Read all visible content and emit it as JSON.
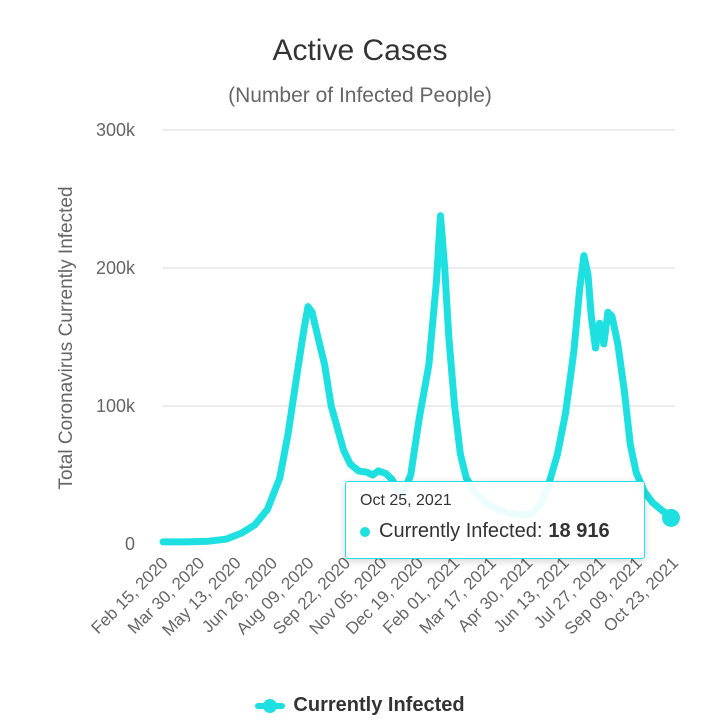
{
  "chart_data": {
    "type": "line",
    "title": "Active Cases",
    "subtitle": "(Number of Infected People)",
    "ylabel": "Total Coronavirus Currently Infected",
    "xlabel": "",
    "ylim": [
      0,
      300000
    ],
    "yticks": [
      {
        "value": 0,
        "label": "0"
      },
      {
        "value": 100000,
        "label": "100k"
      },
      {
        "value": 200000,
        "label": "200k"
      },
      {
        "value": 300000,
        "label": "300k"
      }
    ],
    "x_tick_labels": [
      "Feb 15, 2020",
      "Mar 30, 2020",
      "May 13, 2020",
      "Jun 26, 2020",
      "Aug 09, 2020",
      "Sep 22, 2020",
      "Nov 05, 2020",
      "Dec 19, 2020",
      "Feb 01, 2021",
      "Mar 17, 2021",
      "Apr 30, 2021",
      "Jun 13, 2021",
      "Jul 27, 2021",
      "Sep 09, 2021",
      "Oct 23, 2021"
    ],
    "grid": true,
    "legend_position": "bottom",
    "series": [
      {
        "name": "Currently Infected",
        "color": "#1ee0e0",
        "points": [
          [
            "Feb 15, 2020",
            1500
          ],
          [
            "Mar 15, 2020",
            1500
          ],
          [
            "Apr 10, 2020",
            2000
          ],
          [
            "May 01, 2020",
            3500
          ],
          [
            "May 20, 2020",
            8000
          ],
          [
            "Jun 05, 2020",
            14000
          ],
          [
            "Jun 20, 2020",
            25000
          ],
          [
            "Jul 05, 2020",
            48000
          ],
          [
            "Jul 15, 2020",
            80000
          ],
          [
            "Jul 25, 2020",
            120000
          ],
          [
            "Aug 03, 2020",
            155000
          ],
          [
            "Aug 08, 2020",
            172000
          ],
          [
            "Aug 13, 2020",
            168000
          ],
          [
            "Aug 20, 2020",
            150000
          ],
          [
            "Aug 28, 2020",
            130000
          ],
          [
            "Sep 05, 2020",
            100000
          ],
          [
            "Sep 12, 2020",
            85000
          ],
          [
            "Sep 20, 2020",
            68000
          ],
          [
            "Sep 28, 2020",
            58000
          ],
          [
            "Oct 08, 2020",
            53000
          ],
          [
            "Oct 18, 2020",
            52000
          ],
          [
            "Oct 25, 2020",
            50000
          ],
          [
            "Nov 01, 2020",
            53000
          ],
          [
            "Nov 10, 2020",
            51000
          ],
          [
            "Nov 17, 2020",
            47000
          ],
          [
            "Nov 24, 2020",
            40000
          ],
          [
            "Dec 01, 2020",
            37000
          ],
          [
            "Dec 10, 2020",
            50000
          ],
          [
            "Dec 20, 2020",
            90000
          ],
          [
            "Jan 01, 2021",
            130000
          ],
          [
            "Jan 10, 2021",
            190000
          ],
          [
            "Jan 15, 2021",
            238000
          ],
          [
            "Jan 20, 2021",
            200000
          ],
          [
            "Jan 25, 2021",
            150000
          ],
          [
            "Feb 01, 2021",
            100000
          ],
          [
            "Feb 08, 2021",
            65000
          ],
          [
            "Feb 15, 2021",
            48000
          ],
          [
            "Feb 25, 2021",
            38000
          ],
          [
            "Mar 10, 2021",
            30000
          ],
          [
            "Mar 25, 2021",
            25000
          ],
          [
            "Apr 10, 2021",
            22000
          ],
          [
            "Apr 25, 2021",
            21000
          ],
          [
            "May 05, 2021",
            22000
          ],
          [
            "May 15, 2021",
            28000
          ],
          [
            "May 25, 2021",
            42000
          ],
          [
            "Jun 05, 2021",
            65000
          ],
          [
            "Jun 15, 2021",
            95000
          ],
          [
            "Jun 25, 2021",
            140000
          ],
          [
            "Jul 02, 2021",
            185000
          ],
          [
            "Jul 07, 2021",
            209000
          ],
          [
            "Jul 12, 2021",
            195000
          ],
          [
            "Jul 16, 2021",
            165000
          ],
          [
            "Jul 21, 2021",
            142000
          ],
          [
            "Jul 26, 2021",
            160000
          ],
          [
            "Jul 31, 2021",
            145000
          ],
          [
            "Aug 05, 2021",
            168000
          ],
          [
            "Aug 10, 2021",
            165000
          ],
          [
            "Aug 17, 2021",
            145000
          ],
          [
            "Aug 25, 2021",
            110000
          ],
          [
            "Sep 01, 2021",
            72000
          ],
          [
            "Sep 08, 2021",
            52000
          ],
          [
            "Sep 18, 2021",
            38000
          ],
          [
            "Sep 28, 2021",
            30000
          ],
          [
            "Oct 10, 2021",
            24000
          ],
          [
            "Oct 25, 2021",
            18916
          ]
        ]
      }
    ],
    "tooltip": {
      "date": "Oct 25, 2021",
      "series_label": "Currently Infected:",
      "value": "18 916"
    }
  }
}
